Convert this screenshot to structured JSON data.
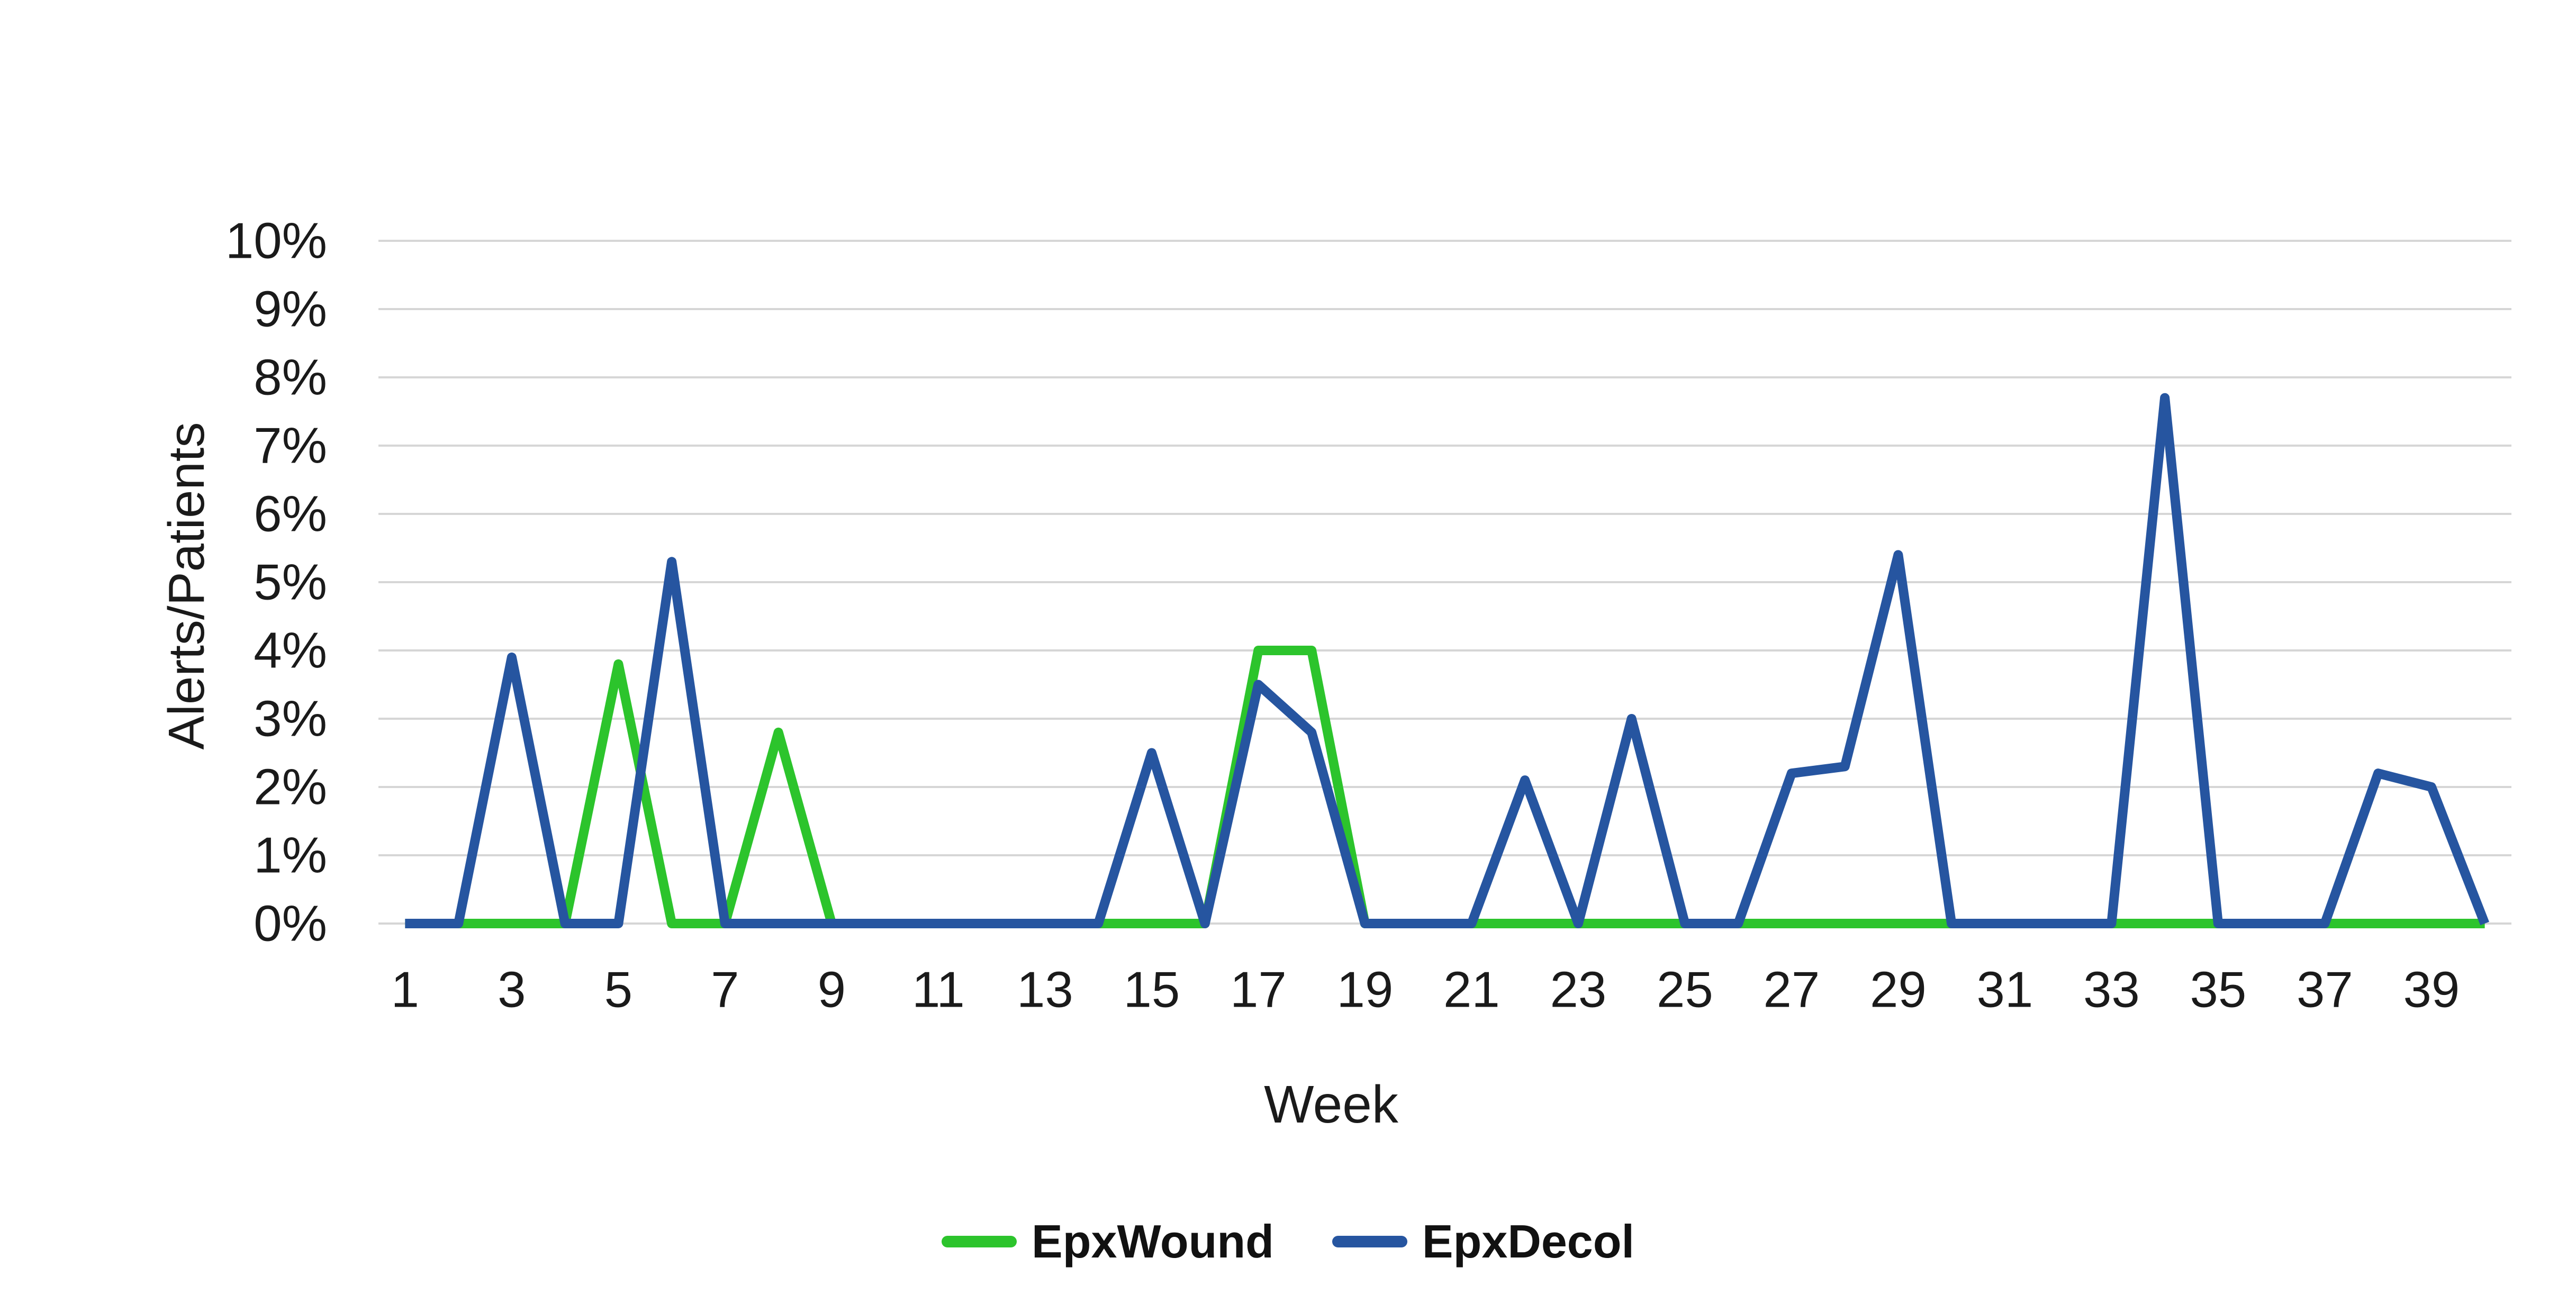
{
  "chart_data": {
    "type": "line",
    "title": "",
    "xlabel": "Week",
    "ylabel": "Alerts/Patients",
    "x": [
      1,
      2,
      3,
      4,
      5,
      6,
      7,
      8,
      9,
      10,
      11,
      12,
      13,
      14,
      15,
      16,
      17,
      18,
      19,
      20,
      21,
      22,
      23,
      24,
      25,
      26,
      27,
      28,
      29,
      30,
      31,
      32,
      33,
      34,
      35,
      36,
      37,
      38,
      39,
      40
    ],
    "xlim": [
      1,
      40
    ],
    "ylim": [
      0,
      10
    ],
    "grid": "horizontal",
    "legend_position": "bottom",
    "gridline_color": "#D6D6D6",
    "text_color": "#1a1a1a",
    "y_ticks": [
      {
        "v": 0,
        "label": "0%"
      },
      {
        "v": 1,
        "label": "1%"
      },
      {
        "v": 2,
        "label": "2%"
      },
      {
        "v": 3,
        "label": "3%"
      },
      {
        "v": 4,
        "label": "4%"
      },
      {
        "v": 5,
        "label": "5%"
      },
      {
        "v": 6,
        "label": "6%"
      },
      {
        "v": 7,
        "label": "7%"
      },
      {
        "v": 8,
        "label": "8%"
      },
      {
        "v": 9,
        "label": "9%"
      },
      {
        "v": 10,
        "label": "10%"
      }
    ],
    "x_ticks": [
      {
        "v": 1,
        "label": "1"
      },
      {
        "v": 3,
        "label": "3"
      },
      {
        "v": 5,
        "label": "5"
      },
      {
        "v": 7,
        "label": "7"
      },
      {
        "v": 9,
        "label": "9"
      },
      {
        "v": 11,
        "label": "11"
      },
      {
        "v": 13,
        "label": "13"
      },
      {
        "v": 15,
        "label": "15"
      },
      {
        "v": 17,
        "label": "17"
      },
      {
        "v": 19,
        "label": "19"
      },
      {
        "v": 21,
        "label": "21"
      },
      {
        "v": 23,
        "label": "23"
      },
      {
        "v": 25,
        "label": "25"
      },
      {
        "v": 27,
        "label": "27"
      },
      {
        "v": 29,
        "label": "29"
      },
      {
        "v": 31,
        "label": "31"
      },
      {
        "v": 33,
        "label": "33"
      },
      {
        "v": 35,
        "label": "35"
      },
      {
        "v": 37,
        "label": "37"
      },
      {
        "v": 39,
        "label": "39"
      }
    ],
    "series": [
      {
        "name": "EpxWound",
        "color": "#2CC42C",
        "values": [
          0,
          0,
          0,
          0,
          3.8,
          0,
          0,
          2.8,
          0,
          0,
          0,
          0,
          0,
          0,
          0,
          0,
          4,
          4,
          0,
          0,
          0,
          0,
          0,
          0,
          0,
          0,
          0,
          0,
          0,
          0,
          0,
          0,
          0,
          0,
          0,
          0,
          0,
          0,
          0,
          0
        ]
      },
      {
        "name": "EpxDecol",
        "color": "#2655A0",
        "values": [
          0,
          0,
          3.9,
          0,
          0,
          5.3,
          0,
          0,
          0,
          0,
          0,
          0,
          0,
          0,
          2.5,
          0,
          3.5,
          2.8,
          0,
          0,
          0,
          2.1,
          0,
          3,
          0,
          0,
          2.2,
          2.3,
          5.4,
          0,
          0,
          0,
          0,
          7.7,
          0,
          0,
          0,
          2.2,
          2,
          0
        ]
      }
    ]
  }
}
